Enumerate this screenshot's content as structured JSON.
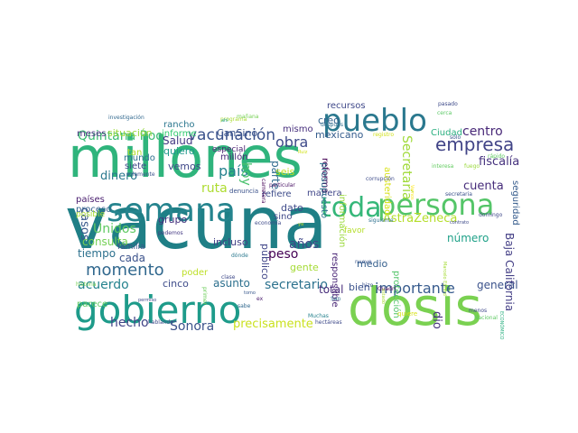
{
  "word_cloud": {
    "colormap": "viridis",
    "words": [
      {
        "text": "vacuna",
        "color": "#1f7f86"
      },
      {
        "text": "millones",
        "color": "#2fb47c"
      },
      {
        "text": "dosis",
        "color": "#7ad151"
      },
      {
        "text": "gobierno",
        "color": "#1e9b8a"
      },
      {
        "text": "semana",
        "color": "#25848e"
      },
      {
        "text": "persona",
        "color": "#54c568"
      },
      {
        "text": "pueblo",
        "color": "#2a788e"
      },
      {
        "text": "toda",
        "color": "#35b779"
      },
      {
        "text": "empresa",
        "color": "#414487"
      },
      {
        "text": "vacunación",
        "color": "#3b528b"
      },
      {
        "text": "momento",
        "color": "#31688e"
      },
      {
        "text": "Quintana Roo",
        "color": "#3dbc74"
      },
      {
        "text": "obra",
        "color": "#3e4a89"
      },
      {
        "text": "centro",
        "color": "#482878"
      },
      {
        "text": "fiscalía",
        "color": "#46327e"
      },
      {
        "text": "país",
        "color": "#26828e"
      },
      {
        "text": "hoy",
        "color": "#4ac16d"
      },
      {
        "text": "Secretaría",
        "color": "#a0da39"
      },
      {
        "text": "cuenta",
        "color": "#472d7b"
      },
      {
        "text": "AstraZeneca",
        "color": "#b5de2b"
      },
      {
        "text": "Baja California",
        "color": "#433e85"
      },
      {
        "text": "Unidos",
        "color": "#5ec962"
      },
      {
        "text": "importante",
        "color": "#375b8d"
      },
      {
        "text": "secretario",
        "color": "#2c728e"
      },
      {
        "text": "Sonora",
        "color": "#3b528b"
      },
      {
        "text": "precisamente",
        "color": "#cae11f"
      },
      {
        "text": "acuerdo",
        "color": "#25838e"
      },
      {
        "text": "hecho",
        "color": "#414487"
      },
      {
        "text": "casos",
        "color": "#38588c"
      },
      {
        "text": "dinero",
        "color": "#2a788e"
      },
      {
        "text": "años",
        "color": "#3f4788"
      },
      {
        "text": "peso",
        "color": "#440154"
      },
      {
        "text": "Salud",
        "color": "#443983"
      },
      {
        "text": "ruta",
        "color": "#addc30"
      },
      {
        "text": "total",
        "color": "#472c7a"
      },
      {
        "text": "general",
        "color": "#3b528b"
      },
      {
        "text": "dio",
        "color": "#46327e"
      },
      {
        "text": "medio",
        "color": "#355f8d"
      },
      {
        "text": "bien",
        "color": "#3b528b"
      },
      {
        "text": "número",
        "color": "#1fa188"
      },
      {
        "text": "consulta",
        "color": "#74d055"
      },
      {
        "text": "tiempo",
        "color": "#2d718e"
      },
      {
        "text": "cada",
        "color": "#3b528b"
      },
      {
        "text": "proceso",
        "color": "#34618d"
      },
      {
        "text": "países",
        "color": "#481c6e"
      },
      {
        "text": "grupo",
        "color": "#46327e"
      },
      {
        "text": "incluso",
        "color": "#424086"
      },
      {
        "text": "asunto",
        "color": "#2d708e"
      },
      {
        "text": "cinco",
        "color": "#3e4c8a"
      },
      {
        "text": "parece",
        "color": "#5ec962"
      },
      {
        "text": "poder",
        "color": "#bddf26"
      },
      {
        "text": "gente",
        "color": "#a5db36"
      },
      {
        "text": "mexicano",
        "color": "#365d8d"
      },
      {
        "text": "mismo",
        "color": "#472f7d"
      },
      {
        "text": "creo",
        "color": "#33638d"
      },
      {
        "text": "parte",
        "color": "#2f6b8e"
      },
      {
        "text": "seis",
        "color": "#c2df23"
      },
      {
        "text": "dato",
        "color": "#3e4a89"
      },
      {
        "text": "sino",
        "color": "#3f4889"
      },
      {
        "text": "refiere",
        "color": "#3e4c8a"
      },
      {
        "text": "manera",
        "color": "#404688"
      },
      {
        "text": "reforma",
        "color": "#440154"
      },
      {
        "text": "recursos",
        "color": "#3f4889"
      },
      {
        "text": "situación",
        "color": "#9bd93c"
      },
      {
        "text": "meses",
        "color": "#46327e"
      },
      {
        "text": "rancho",
        "color": "#2a768e"
      },
      {
        "text": "informe",
        "color": "#30cb6e"
      },
      {
        "text": "quiero",
        "color": "#1f988b"
      },
      {
        "text": "millón",
        "color": "#482677"
      },
      {
        "text": "mundo",
        "color": "#2d708e"
      },
      {
        "text": "siete",
        "color": "#3e4989"
      },
      {
        "text": "tan",
        "color": "#b2dd2d"
      },
      {
        "text": "vemos",
        "color": "#3f4788"
      },
      {
        "text": "CanSino",
        "color": "#3a548c"
      },
      {
        "text": "especial",
        "color": "#481f70"
      },
      {
        "text": "público",
        "color": "#404588"
      },
      {
        "text": "presupuesto",
        "color": "#2d718e"
      },
      {
        "text": "información",
        "color": "#9bd93c"
      },
      {
        "text": "responsable",
        "color": "#482475"
      },
      {
        "text": "protección",
        "color": "#52c569"
      },
      {
        "text": "seguridad",
        "color": "#365c8d"
      },
      {
        "text": "austeridad",
        "color": "#d8e219"
      },
      {
        "text": "Ciudad",
        "color": "#29af7f"
      },
      {
        "text": "posible",
        "color": "#a8db34"
      },
      {
        "text": "familia",
        "color": "#3b528b"
      },
      {
        "text": "favor",
        "color": "#b5de2b"
      },
      {
        "text": "investigación",
        "color": "#31688e"
      },
      {
        "text": "programa",
        "color": "#aadc32"
      },
      {
        "text": "mañana",
        "color": "#75d054"
      },
      {
        "text": "después",
        "color": "#2e6e8e"
      },
      {
        "text": "registro",
        "color": "#d0e11c"
      },
      {
        "text": "sólo",
        "color": "#39568c"
      },
      {
        "text": "cerca",
        "color": "#5ac864"
      },
      {
        "text": "pasado",
        "color": "#3e4a89"
      },
      {
        "text": "rápido",
        "color": "#5ec962"
      },
      {
        "text": "interesa",
        "color": "#62cb5f"
      },
      {
        "text": "fuego",
        "color": "#9bd93c"
      },
      {
        "text": "secretaria",
        "color": "#3b528b"
      },
      {
        "text": "domingo",
        "color": "#3f4889"
      },
      {
        "text": "siguiente",
        "color": "#2d708e"
      },
      {
        "text": "corrupción",
        "color": "#3e4c8a"
      },
      {
        "text": "carretera",
        "color": "#440154"
      },
      {
        "text": "particular",
        "color": "#471063"
      },
      {
        "text": "denuncia",
        "color": "#3b528b"
      },
      {
        "text": "economía",
        "color": "#3e4a89"
      },
      {
        "text": "podemos",
        "color": "#443983"
      },
      {
        "text": "historia",
        "color": "#75d054"
      },
      {
        "text": "solamente",
        "color": "#3b528b"
      },
      {
        "text": "nuevo",
        "color": "#39568c"
      },
      {
        "text": "hablando",
        "color": "#3e4a89"
      },
      {
        "text": "Muchas",
        "color": "#26828e"
      },
      {
        "text": "hectáreas",
        "color": "#3e4989"
      },
      {
        "text": "quiere",
        "color": "#d8e219"
      },
      {
        "text": "menos",
        "color": "#3f4889"
      },
      {
        "text": "Nacional",
        "color": "#5ec962"
      },
      {
        "text": "ECONÓMICO",
        "color": "#29af7f"
      },
      {
        "text": "sabe",
        "color": "#31688e"
      },
      {
        "text": "clase",
        "color": "#3e4989"
      },
      {
        "text": "Quadri",
        "color": "#440154"
      },
      {
        "text": "primer",
        "color": "#6ccd5a"
      },
      {
        "text": "tomo",
        "color": "#38588c"
      },
      {
        "text": "ex",
        "color": "#481a6c"
      },
      {
        "text": "San",
        "color": "#2c728e"
      },
      {
        "text": "hizo",
        "color": "#3b528b"
      },
      {
        "text": "dónde",
        "color": "#2a788e"
      },
      {
        "text": "permiso",
        "color": "#3f4889"
      },
      {
        "text": "Marcelo Ebrard",
        "color": "#a5db36"
      },
      {
        "text": "Ruiz",
        "color": "#d2e21b"
      },
      {
        "text": "Vamos",
        "color": "#fde725"
      },
      {
        "text": "ahí",
        "color": "#1f9e89"
      },
      {
        "text": "estado",
        "color": "#a8db34"
      },
      {
        "text": "contrato",
        "color": "#3e4a89"
      },
      {
        "text": "ya",
        "color": "#c0df25"
      }
    ]
  }
}
